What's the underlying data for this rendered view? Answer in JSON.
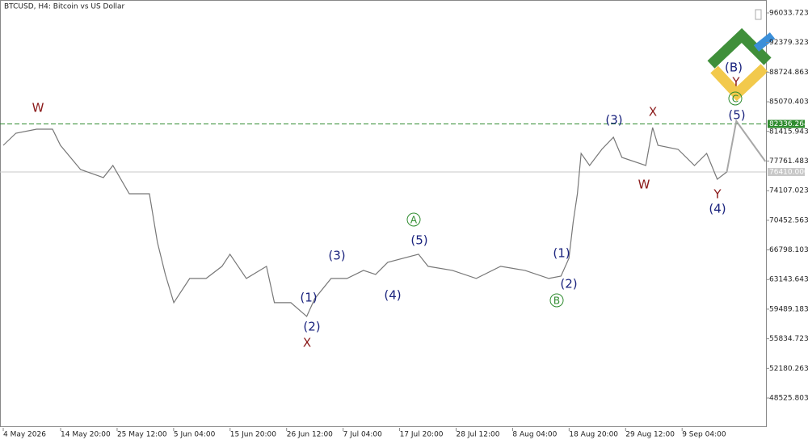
{
  "chart_data": {
    "type": "line",
    "title": "BTCUSD, H4:  Bitcoin vs US Dollar",
    "xlim": [
      0,
      144
    ],
    "ylim": [
      44842,
      97627
    ],
    "xticks": [
      {
        "value": 0,
        "label": "4 May 2026"
      },
      {
        "value": 10.833,
        "label": "14 May 20:00"
      },
      {
        "value": 21.5,
        "label": "25 May 12:00"
      },
      {
        "value": 32.167,
        "label": "5 Jun 04:00"
      },
      {
        "value": 42.833,
        "label": "15 Jun 20:00"
      },
      {
        "value": 53.5,
        "label": "26 Jun 12:00"
      },
      {
        "value": 64.167,
        "label": "7 Jul 04:00"
      },
      {
        "value": 74.833,
        "label": "17 Jul 20:00"
      },
      {
        "value": 85.5,
        "label": "28 Jul 12:00"
      },
      {
        "value": 96.167,
        "label": "8 Aug 04:00"
      },
      {
        "value": 106.833,
        "label": "18 Aug 20:00"
      },
      {
        "value": 117.5,
        "label": "29 Aug 12:00"
      },
      {
        "value": 128.167,
        "label": "9 Sep 04:00"
      }
    ],
    "yticks": [
      96033.723,
      92379.323,
      88724.863,
      85070.403,
      81415.943,
      77761.483,
      74107.023,
      70452.563,
      66798.103,
      63143.643,
      59489.183,
      55834.723,
      52180.263,
      48525.803
    ],
    "series": [
      {
        "color": "#777777",
        "x": [
          0,
          2.4,
          6.3,
          9.3,
          10.8,
          14.6,
          18.9,
          20.7,
          23.8,
          27.6,
          29.1,
          30.6,
          32.2,
          35.2,
          38.3,
          41.3,
          42.8,
          45.9,
          49.7,
          51.2,
          54.3,
          57.3,
          58.8,
          61.9,
          64.9,
          68.0,
          70.3,
          72.6,
          78.4,
          80.2,
          84.8,
          89.3,
          93.9,
          98.5,
          103.0,
          105.3,
          106.8,
          107.6,
          108.4,
          109.1,
          110.7,
          113.0,
          115.2,
          116.8,
          121.3,
          122.6,
          123.6,
          127.4,
          130.5,
          132.8,
          134.8,
          136.6
        ],
        "values": [
          79703,
          81196,
          81694,
          81694,
          79703,
          76715,
          75719,
          77213,
          73728,
          73728,
          67753,
          63770,
          60285,
          63272,
          63272,
          64766,
          66260,
          63272,
          64766,
          60285,
          60285,
          58592,
          60782,
          63272,
          63272,
          64268,
          63770,
          65264,
          66260,
          64766,
          64268,
          63272,
          64766,
          64268,
          63272,
          63570,
          65761,
          70246,
          73728,
          78707,
          77213,
          79205,
          80699,
          78209,
          77213,
          81893,
          79703,
          79205,
          77213,
          78707,
          75520,
          76417
        ]
      },
      {
        "color": "#a8a8a8",
        "x": [
          136.6,
          138.4,
          143.9
        ],
        "values": [
          76417,
          82690,
          77711
        ]
      }
    ],
    "price_lines": [
      {
        "y": 82336.264,
        "color": "#2e8b2e",
        "dashed": true
      },
      {
        "y": {
          "value": 76410,
          "label": "76410.000"
        },
        "color": "#c8c8c8",
        "dashed": false
      }
    ],
    "annotations": [
      {
        "text": "W",
        "color": "#8b1a1a",
        "circled": false
      },
      {
        "text": "X",
        "color": "#8b1a1a",
        "circled": false
      },
      {
        "text": "(1)",
        "color": "#1a237e",
        "circled": false
      },
      {
        "text": "(2)",
        "color": "#1a237e",
        "circled": false
      },
      {
        "text": "(3)",
        "color": "#1a237e",
        "circled": false
      },
      {
        "text": "(4)",
        "color": "#1a237e",
        "circled": false
      },
      {
        "text": "A",
        "color": "#2e8b2e",
        "circled": true
      },
      {
        "text": "(5)",
        "color": "#1a237e",
        "circled": false
      },
      {
        "text": "B",
        "color": "#2e8b2e",
        "circled": true
      },
      {
        "text": "(1)",
        "color": "#1a237e",
        "circled": false
      },
      {
        "text": "(2)",
        "color": "#1a237e",
        "circled": false
      },
      {
        "text": "(3)",
        "color": "#1a237e",
        "circled": false
      },
      {
        "text": "X",
        "color": "#8b1a1a",
        "circled": false
      },
      {
        "text": "W",
        "color": "#8b1a1a",
        "circled": false
      },
      {
        "text": "Y",
        "color": "#8b1a1a",
        "circled": false
      },
      {
        "text": "(4)",
        "color": "#1a237e",
        "circled": false
      },
      {
        "text": "(5)",
        "color": "#1a237e",
        "circled": false
      },
      {
        "text": "C",
        "color": "#2e8b2e",
        "circled": true
      },
      {
        "text": "Y",
        "color": "#8b1a1a",
        "circled": false
      },
      {
        "text": "(B)",
        "color": "#1a237e",
        "circled": false
      }
    ]
  }
}
